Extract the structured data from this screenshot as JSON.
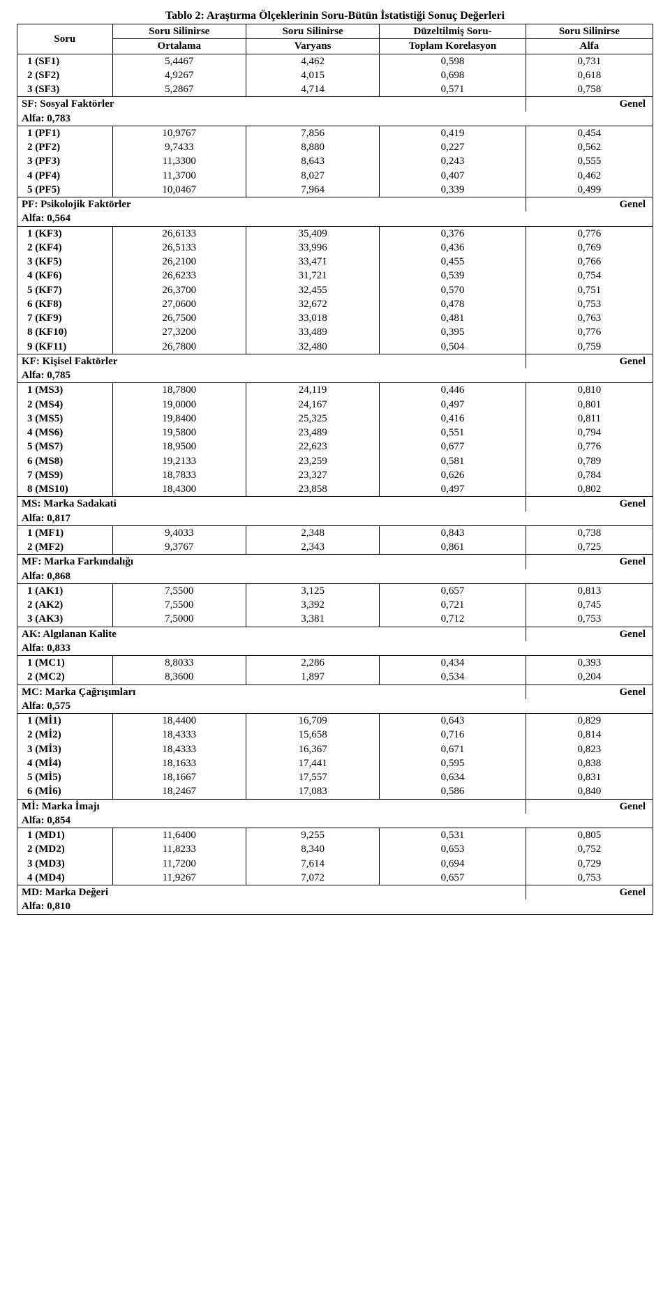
{
  "title": "Tablo 2: Araştırma Ölçeklerinin Soru-Bütün İstatistiği Sonuç Değerleri",
  "headers": {
    "soru": "Soru",
    "ortalama_top": "Soru Silinirse",
    "ortalama_bot": "Ortalama",
    "varyans_top": "Soru Silinirse",
    "varyans_bot": "Varyans",
    "korelasyon_top": "Düzeltilmiş Soru-",
    "korelasyon_bot": "Toplam Korelasyon",
    "alfa_top": "Soru Silinirse",
    "alfa_bot": "Alfa"
  },
  "genel_label": "Genel",
  "sections": [
    {
      "rows": [
        {
          "soru": "1 (SF1)",
          "c1": "5,4467",
          "c2": "4,462",
          "c3": "0,598",
          "c4": "0,731"
        },
        {
          "soru": "2 (SF2)",
          "c1": "4,9267",
          "c2": "4,015",
          "c3": "0,698",
          "c4": "0,618"
        },
        {
          "soru": "3 (SF3)",
          "c1": "5,2867",
          "c2": "4,714",
          "c3": "0,571",
          "c4": "0,758"
        }
      ],
      "label": "SF: Sosyal Faktörler",
      "alfa": "Alfa:  0,783"
    },
    {
      "rows": [
        {
          "soru": "1 (PF1)",
          "c1": "10,9767",
          "c2": "7,856",
          "c3": "0,419",
          "c4": "0,454"
        },
        {
          "soru": "2 (PF2)",
          "c1": "9,7433",
          "c2": "8,880",
          "c3": "0,227",
          "c4": "0,562"
        },
        {
          "soru": "3 (PF3)",
          "c1": "11,3300",
          "c2": "8,643",
          "c3": "0,243",
          "c4": "0,555"
        },
        {
          "soru": "4 (PF4)",
          "c1": "11,3700",
          "c2": "8,027",
          "c3": "0,407",
          "c4": "0,462"
        },
        {
          "soru": "5 (PF5)",
          "c1": "10,0467",
          "c2": "7,964",
          "c3": "0,339",
          "c4": "0,499"
        }
      ],
      "label": "PF: Psikolojik Faktörler",
      "alfa": "Alfa:  0,564"
    },
    {
      "rows": [
        {
          "soru": "1 (KF3)",
          "c1": "26,6133",
          "c2": "35,409",
          "c3": "0,376",
          "c4": "0,776"
        },
        {
          "soru": "2 (KF4)",
          "c1": "26,5133",
          "c2": "33,996",
          "c3": "0,436",
          "c4": "0,769"
        },
        {
          "soru": "3 (KF5)",
          "c1": "26,2100",
          "c2": "33,471",
          "c3": "0,455",
          "c4": "0,766"
        },
        {
          "soru": "4 (KF6)",
          "c1": "26,6233",
          "c2": "31,721",
          "c3": "0,539",
          "c4": "0,754"
        },
        {
          "soru": "5 (KF7)",
          "c1": "26,3700",
          "c2": "32,455",
          "c3": "0,570",
          "c4": "0,751"
        },
        {
          "soru": "6 (KF8)",
          "c1": "27,0600",
          "c2": "32,672",
          "c3": "0,478",
          "c4": "0,753"
        },
        {
          "soru": "7 (KF9)",
          "c1": "26,7500",
          "c2": "33,018",
          "c3": "0,481",
          "c4": "0,763"
        },
        {
          "soru": "8 (KF10)",
          "c1": "27,3200",
          "c2": "33,489",
          "c3": "0,395",
          "c4": "0,776"
        },
        {
          "soru": "9 (KF11)",
          "c1": "26,7800",
          "c2": "32,480",
          "c3": "0,504",
          "c4": "0,759"
        }
      ],
      "label": "KF: Kişisel Faktörler",
      "alfa": "Alfa:  0,785"
    },
    {
      "rows": [
        {
          "soru": "1 (MS3)",
          "c1": "18,7800",
          "c2": "24,119",
          "c3": "0,446",
          "c4": "0,810"
        },
        {
          "soru": "2 (MS4)",
          "c1": "19,0000",
          "c2": "24,167",
          "c3": "0,497",
          "c4": "0,801"
        },
        {
          "soru": "3 (MS5)",
          "c1": "19,8400",
          "c2": "25,325",
          "c3": "0,416",
          "c4": "0,811"
        },
        {
          "soru": "4 (MS6)",
          "c1": "19,5800",
          "c2": "23,489",
          "c3": "0,551",
          "c4": "0,794"
        },
        {
          "soru": "5 (MS7)",
          "c1": "18,9500",
          "c2": "22,623",
          "c3": "0,677",
          "c4": "0,776"
        },
        {
          "soru": "6 (MS8)",
          "c1": "19,2133",
          "c2": "23,259",
          "c3": "0,581",
          "c4": "0,789"
        },
        {
          "soru": "7 (MS9)",
          "c1": "18,7833",
          "c2": "23,327",
          "c3": "0,626",
          "c4": "0,784"
        },
        {
          "soru": "8 (MS10)",
          "c1": "18,4300",
          "c2": "23,858",
          "c3": "0,497",
          "c4": "0,802"
        }
      ],
      "label": "MS: Marka Sadakati",
      "alfa": "Alfa:  0,817"
    },
    {
      "rows": [
        {
          "soru": "1 (MF1)",
          "c1": "9,4033",
          "c2": "2,348",
          "c3": "0,843",
          "c4": "0,738"
        },
        {
          "soru": "2 (MF2)",
          "c1": "9,3767",
          "c2": "2,343",
          "c3": "0,861",
          "c4": "0,725"
        }
      ],
      "label": "MF: Marka Farkındalığı",
      "alfa": "Alfa:  0,868"
    },
    {
      "rows": [
        {
          "soru": "1 (AK1)",
          "c1": "7,5500",
          "c2": "3,125",
          "c3": "0,657",
          "c4": "0,813"
        },
        {
          "soru": "2 (AK2)",
          "c1": "7,5500",
          "c2": "3,392",
          "c3": "0,721",
          "c4": "0,745"
        },
        {
          "soru": "3 (AK3)",
          "c1": "7,5000",
          "c2": "3,381",
          "c3": "0,712",
          "c4": "0,753"
        }
      ],
      "label": "AK: Algılanan Kalite",
      "alfa": "Alfa:  0,833"
    },
    {
      "rows": [
        {
          "soru": "1 (MC1)",
          "c1": "8,8033",
          "c2": "2,286",
          "c3": "0,434",
          "c4": "0,393"
        },
        {
          "soru": "2 (MC2)",
          "c1": "8,3600",
          "c2": "1,897",
          "c3": "0,534",
          "c4": "0,204"
        }
      ],
      "label": "MC: Marka Çağrışımları",
      "alfa": "Alfa:  0,575"
    },
    {
      "rows": [
        {
          "soru": "1 (Mİ1)",
          "c1": "18,4400",
          "c2": "16,709",
          "c3": "0,643",
          "c4": "0,829"
        },
        {
          "soru": "2 (Mİ2)",
          "c1": "18,4333",
          "c2": "15,658",
          "c3": "0,716",
          "c4": "0,814"
        },
        {
          "soru": "3 (Mİ3)",
          "c1": "18,4333",
          "c2": "16,367",
          "c3": "0,671",
          "c4": "0,823"
        },
        {
          "soru": "4 (Mİ4)",
          "c1": "18,1633",
          "c2": "17,441",
          "c3": "0,595",
          "c4": "0,838"
        },
        {
          "soru": "5 (Mİ5)",
          "c1": "18,1667",
          "c2": "17,557",
          "c3": "0,634",
          "c4": "0,831"
        },
        {
          "soru": "6 (Mİ6)",
          "c1": "18,2467",
          "c2": "17,083",
          "c3": "0,586",
          "c4": "0,840"
        }
      ],
      "label": "Mİ: Marka İmajı",
      "alfa": "Alfa:  0,854"
    },
    {
      "rows": [
        {
          "soru": "1 (MD1)",
          "c1": "11,6400",
          "c2": "9,255",
          "c3": "0,531",
          "c4": "0,805"
        },
        {
          "soru": "2 (MD2)",
          "c1": "11,8233",
          "c2": "8,340",
          "c3": "0,653",
          "c4": "0,752"
        },
        {
          "soru": "3 (MD3)",
          "c1": "11,7200",
          "c2": "7,614",
          "c3": "0,694",
          "c4": "0,729"
        },
        {
          "soru": "4 (MD4)",
          "c1": "11,9267",
          "c2": "7,072",
          "c3": "0,657",
          "c4": "0,753"
        }
      ],
      "label": "MD: Marka Değeri",
      "alfa": "Alfa:  0,810"
    }
  ]
}
